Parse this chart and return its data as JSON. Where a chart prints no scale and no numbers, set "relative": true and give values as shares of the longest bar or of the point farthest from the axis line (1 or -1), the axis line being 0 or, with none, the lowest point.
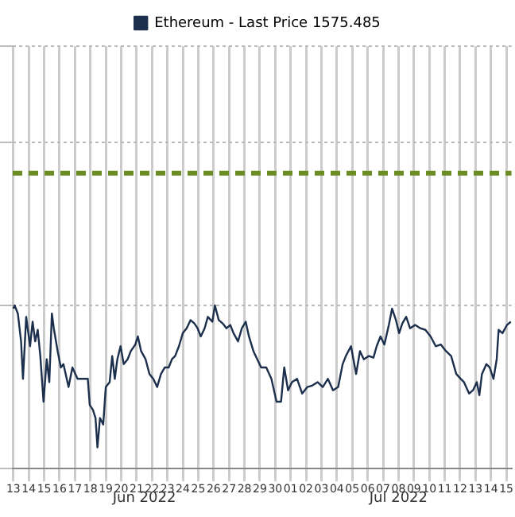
{
  "chart_data": {
    "type": "line",
    "relative": true,
    "grid": true,
    "legend": "top",
    "marker": "none",
    "line_style": "solid",
    "xlim": [
      "2022-06-12T23:00",
      "2022-07-15T08:00"
    ],
    "xticks": [
      {
        "value": "2022-06-13",
        "label": "13"
      },
      {
        "value": "2022-06-14",
        "label": "14"
      },
      {
        "value": "2022-06-15",
        "label": "15"
      },
      {
        "value": "2022-06-16",
        "label": "16"
      },
      {
        "value": "2022-06-17",
        "label": "17"
      },
      {
        "value": "2022-06-18",
        "label": "18"
      },
      {
        "value": "2022-06-19",
        "label": "19"
      },
      {
        "value": "2022-06-20",
        "label": "20"
      },
      {
        "value": "2022-06-21",
        "label": "21"
      },
      {
        "value": "2022-06-22",
        "label": "22"
      },
      {
        "value": "2022-06-23",
        "label": "23"
      },
      {
        "value": "2022-06-24",
        "label": "24"
      },
      {
        "value": "2022-06-25",
        "label": "25"
      },
      {
        "value": "2022-06-26",
        "label": "26"
      },
      {
        "value": "2022-06-27",
        "label": "27"
      },
      {
        "value": "2022-06-28",
        "label": "28"
      },
      {
        "value": "2022-06-29",
        "label": "29"
      },
      {
        "value": "2022-06-30",
        "label": "30"
      },
      {
        "value": "2022-07-01",
        "label": "01"
      },
      {
        "value": "2022-07-02",
        "label": "02"
      },
      {
        "value": "2022-07-03",
        "label": "03"
      },
      {
        "value": "2022-07-04",
        "label": "04"
      },
      {
        "value": "2022-07-05",
        "label": "05"
      },
      {
        "value": "2022-07-06",
        "label": "06"
      },
      {
        "value": "2022-07-07",
        "label": "07"
      },
      {
        "value": "2022-07-08",
        "label": "08"
      },
      {
        "value": "2022-07-09",
        "label": "09"
      },
      {
        "value": "2022-07-10",
        "label": "10"
      },
      {
        "value": "2022-07-11",
        "label": "11"
      },
      {
        "value": "2022-07-12",
        "label": "12"
      },
      {
        "value": "2022-07-13",
        "label": "13"
      },
      {
        "value": "2022-07-14",
        "label": "14"
      },
      {
        "value": "2022-07-15",
        "label": "15"
      }
    ],
    "annotations": [
      "Jun 2022",
      "Jul 2022"
    ],
    "ref_lines": [
      {
        "axis": "y",
        "value": 1.81,
        "color": "#6b8e23",
        "line_style": "dashed"
      }
    ],
    "series": [
      {
        "name": "Ethereum - Last Price 1575.485",
        "color": "#1c2f4d",
        "x": [
          "2022-06-13T00:00",
          "2022-06-13T02:00",
          "2022-06-13T07:00",
          "2022-06-13T12:00",
          "2022-06-13T15:00",
          "2022-06-13T20:00",
          "2022-06-14T02:00",
          "2022-06-14T06:00",
          "2022-06-14T10:00",
          "2022-06-14T14:00",
          "2022-06-14T18:00",
          "2022-06-14T23:00",
          "2022-06-15T04:00",
          "2022-06-15T08:00",
          "2022-06-15T12:00",
          "2022-06-15T15:00",
          "2022-06-15T21:00",
          "2022-06-16T02:00",
          "2022-06-16T06:00",
          "2022-06-16T14:00",
          "2022-06-16T20:00",
          "2022-06-17T04:00",
          "2022-06-17T14:00",
          "2022-06-17T20:00",
          "2022-06-17T23:00",
          "2022-06-18T04:00",
          "2022-06-18T08:00",
          "2022-06-18T11:00",
          "2022-06-18T15:00",
          "2022-06-18T20:00",
          "2022-06-19T00:00",
          "2022-06-19T06:00",
          "2022-06-19T10:00",
          "2022-06-19T14:00",
          "2022-06-19T18:00",
          "2022-06-19T23:00",
          "2022-06-20T04:00",
          "2022-06-20T10:00",
          "2022-06-20T15:00",
          "2022-06-20T22:00",
          "2022-06-21T02:00",
          "2022-06-21T07:00",
          "2022-06-21T14:00",
          "2022-06-21T20:00",
          "2022-06-22T02:00",
          "2022-06-22T08:00",
          "2022-06-22T14:00",
          "2022-06-22T20:00",
          "2022-06-23T02:00",
          "2022-06-23T07:00",
          "2022-06-23T12:00",
          "2022-06-23T18:00",
          "2022-06-24T00:00",
          "2022-06-24T06:00",
          "2022-06-24T12:00",
          "2022-06-24T18:00",
          "2022-06-24T23:00",
          "2022-06-25T04:00",
          "2022-06-25T10:00",
          "2022-06-25T15:00",
          "2022-06-25T22:00",
          "2022-06-26T02:00",
          "2022-06-26T08:00",
          "2022-06-26T14:00",
          "2022-06-26T20:00",
          "2022-06-27T02:00",
          "2022-06-27T07:00",
          "2022-06-27T14:00",
          "2022-06-27T20:00",
          "2022-06-28T02:00",
          "2022-06-28T07:00",
          "2022-06-28T14:00",
          "2022-06-28T20:00",
          "2022-06-29T02:00",
          "2022-06-29T10:00",
          "2022-06-29T18:00",
          "2022-06-30T02:00",
          "2022-06-30T09:00",
          "2022-06-30T14:00",
          "2022-06-30T20:00",
          "2022-07-01T02:00",
          "2022-07-01T10:00",
          "2022-07-01T18:00",
          "2022-07-02T02:00",
          "2022-07-02T10:00",
          "2022-07-02T18:00",
          "2022-07-03T02:00",
          "2022-07-03T10:00",
          "2022-07-03T18:00",
          "2022-07-04T02:00",
          "2022-07-04T09:00",
          "2022-07-04T14:00",
          "2022-07-04T22:00",
          "2022-07-05T06:00",
          "2022-07-05T12:00",
          "2022-07-05T18:00",
          "2022-07-06T02:00",
          "2022-07-06T09:00",
          "2022-07-06T14:00",
          "2022-07-06T20:00",
          "2022-07-07T02:00",
          "2022-07-07T09:00",
          "2022-07-07T14:00",
          "2022-07-07T20:00",
          "2022-07-08T01:00",
          "2022-07-08T06:00",
          "2022-07-08T12:00",
          "2022-07-08T18:00",
          "2022-07-09T02:00",
          "2022-07-09T10:00",
          "2022-07-09T18:00",
          "2022-07-10T02:00",
          "2022-07-10T10:00",
          "2022-07-10T18:00",
          "2022-07-11T02:00",
          "2022-07-11T10:00",
          "2022-07-11T18:00",
          "2022-07-12T01:00",
          "2022-07-12T06:00",
          "2022-07-12T14:00",
          "2022-07-12T20:00",
          "2022-07-13T02:00",
          "2022-07-13T06:00",
          "2022-07-13T10:00",
          "2022-07-13T17:00",
          "2022-07-13T22:00",
          "2022-07-14T04:00",
          "2022-07-14T09:00",
          "2022-07-14T12:00",
          "2022-07-14T18:00",
          "2022-07-15T01:00",
          "2022-07-15T07:00"
        ],
        "values": [
          0.98,
          1.0,
          0.95,
          0.78,
          0.55,
          0.93,
          0.75,
          0.9,
          0.78,
          0.85,
          0.69,
          0.41,
          0.67,
          0.53,
          0.95,
          0.86,
          0.72,
          0.62,
          0.64,
          0.5,
          0.62,
          0.55,
          0.55,
          0.55,
          0.39,
          0.36,
          0.31,
          0.13,
          0.31,
          0.27,
          0.5,
          0.53,
          0.69,
          0.55,
          0.67,
          0.75,
          0.64,
          0.67,
          0.72,
          0.76,
          0.81,
          0.72,
          0.67,
          0.58,
          0.55,
          0.5,
          0.58,
          0.62,
          0.62,
          0.67,
          0.69,
          0.75,
          0.83,
          0.86,
          0.91,
          0.89,
          0.86,
          0.81,
          0.86,
          0.93,
          0.9,
          1.0,
          0.91,
          0.89,
          0.86,
          0.88,
          0.83,
          0.78,
          0.86,
          0.9,
          0.81,
          0.72,
          0.67,
          0.62,
          0.62,
          0.55,
          0.41,
          0.41,
          0.62,
          0.48,
          0.53,
          0.55,
          0.46,
          0.5,
          0.51,
          0.53,
          0.5,
          0.55,
          0.48,
          0.5,
          0.64,
          0.69,
          0.75,
          0.58,
          0.72,
          0.67,
          0.69,
          0.68,
          0.75,
          0.81,
          0.76,
          0.88,
          0.98,
          0.91,
          0.83,
          0.89,
          0.93,
          0.86,
          0.88,
          0.86,
          0.85,
          0.81,
          0.75,
          0.76,
          0.72,
          0.69,
          0.58,
          0.55,
          0.53,
          0.46,
          0.48,
          0.53,
          0.45,
          0.58,
          0.64,
          0.62,
          0.55,
          0.67,
          0.85,
          0.83,
          0.88,
          0.9
        ]
      }
    ]
  }
}
